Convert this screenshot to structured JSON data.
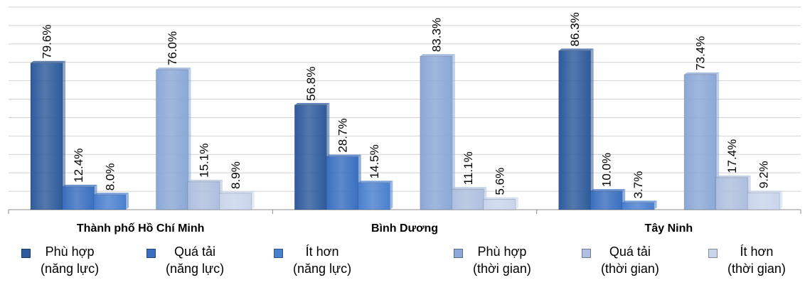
{
  "chart_data": {
    "type": "bar",
    "categories": [
      "Thành phố Hồ Chí Minh",
      "Bình Dương",
      "Tây Ninh"
    ],
    "series": [
      {
        "name": "Phù hợp\n(năng lực)",
        "values": [
          79.6,
          56.8,
          86.3
        ],
        "color": "#2e5b9c"
      },
      {
        "name": "Quá tải\n(năng lực)",
        "values": [
          12.4,
          28.7,
          10.0
        ],
        "color": "#3a6fc0"
      },
      {
        "name": "Ít hơn\n(năng lực)",
        "values": [
          8.0,
          14.5,
          3.7
        ],
        "color": "#4a80cf"
      },
      {
        "name": "Phù hợp\n(thời gian)",
        "values": [
          76.0,
          83.3,
          73.4
        ],
        "color": "#8ba8d6"
      },
      {
        "name": "Quá tải\n(thời gian)",
        "values": [
          15.1,
          11.1,
          17.4
        ],
        "color": "#aebfdf"
      },
      {
        "name": "Ít hơn\n(thời gian)",
        "values": [
          8.9,
          5.6,
          9.2
        ],
        "color": "#c9d5ec"
      }
    ],
    "value_format": "%",
    "ylim": [
      0,
      110
    ],
    "grid": true,
    "legend": "bottom"
  }
}
